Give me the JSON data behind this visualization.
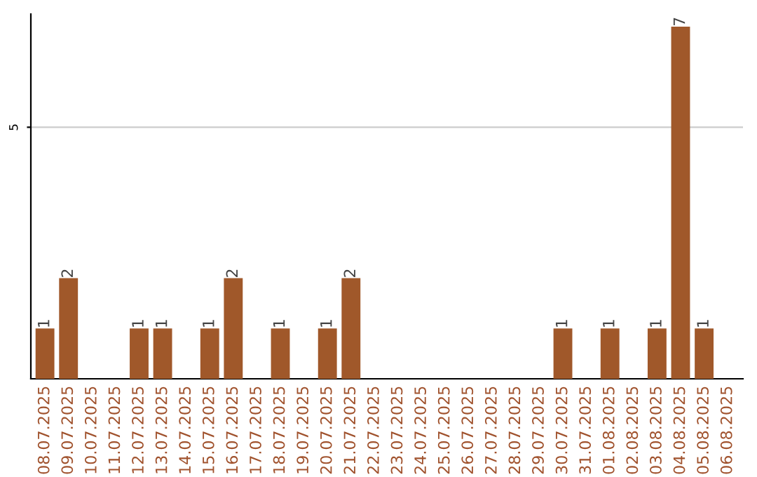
{
  "chart_data": {
    "type": "bar",
    "categories": [
      "08.07.2025",
      "09.07.2025",
      "10.07.2025",
      "11.07.2025",
      "12.07.2025",
      "13.07.2025",
      "14.07.2025",
      "15.07.2025",
      "16.07.2025",
      "17.07.2025",
      "18.07.2025",
      "19.07.2025",
      "20.07.2025",
      "21.07.2025",
      "22.07.2025",
      "23.07.2025",
      "24.07.2025",
      "25.07.2025",
      "26.07.2025",
      "27.07.2025",
      "28.07.2025",
      "29.07.2025",
      "30.07.2025",
      "31.07.2025",
      "01.08.2025",
      "02.08.2025",
      "03.08.2025",
      "04.08.2025",
      "05.08.2025",
      "06.08.2025"
    ],
    "values": [
      1,
      2,
      0,
      0,
      1,
      1,
      0,
      1,
      2,
      0,
      1,
      0,
      1,
      2,
      0,
      0,
      0,
      0,
      0,
      0,
      0,
      0,
      1,
      0,
      1,
      0,
      1,
      7,
      1,
      0
    ],
    "value_labels": [
      "1",
      "2",
      null,
      null,
      "1",
      "1",
      null,
      "1",
      "2",
      null,
      "1",
      null,
      "1",
      "2",
      null,
      null,
      null,
      null,
      null,
      null,
      null,
      null,
      "1",
      null,
      "1",
      null,
      "1",
      "7",
      "1",
      null
    ],
    "color": "#a0582a",
    "ylim": [
      0,
      7.25
    ],
    "yticks": [
      5
    ],
    "grid": "y",
    "legend": false
  }
}
